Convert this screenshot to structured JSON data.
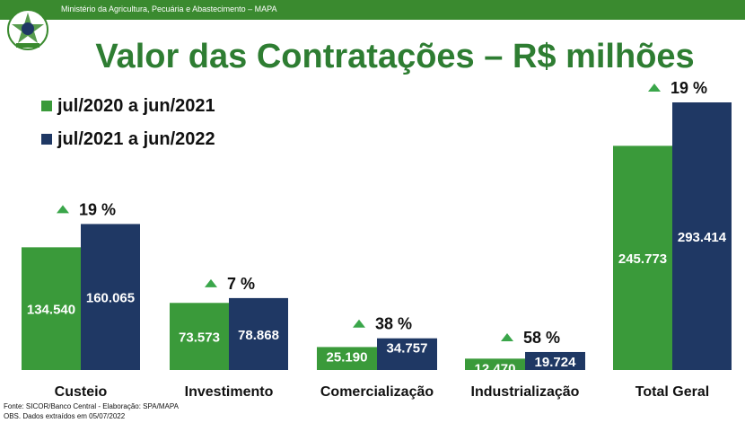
{
  "header": {
    "ministry": "Ministério da Agricultura, Pecuária e Abastecimento – MAPA"
  },
  "colors": {
    "series_2020": "#3a9a3a",
    "series_2021": "#1f3864",
    "header": "#3a8a2f",
    "title": "#2e7d32",
    "up_arrow": "#3aa64a"
  },
  "footnotes": {
    "source": "Fonte: SICOR/Banco Central - Elaboração: SPA/MAPA",
    "obs": "OBS. Dados extraídos em 05/07/2022"
  },
  "chart_data": {
    "type": "bar",
    "title": "Valor das Contratações – R$ milhões",
    "categories": [
      "Custeio",
      "Investimento",
      "Comercialização",
      "Industrialização",
      "Total Geral"
    ],
    "series": [
      {
        "name": "jul/2020 a jun/2021",
        "values": [
          134.54,
          73.573,
          25.19,
          12.47,
          245.773
        ],
        "labels": [
          "134.540",
          "73.573",
          "25.190",
          "12.470",
          "245.773"
        ]
      },
      {
        "name": "jul/2021 a jun/2022",
        "values": [
          160.065,
          78.868,
          34.757,
          19.724,
          293.414
        ],
        "labels": [
          "160.065",
          "78.868",
          "34.757",
          "19.724",
          "293.414"
        ]
      }
    ],
    "growth": [
      "19 %",
      "7 %",
      "38 %",
      "58 %",
      "19 %"
    ],
    "legend_position": "top-left",
    "grid": false
  }
}
